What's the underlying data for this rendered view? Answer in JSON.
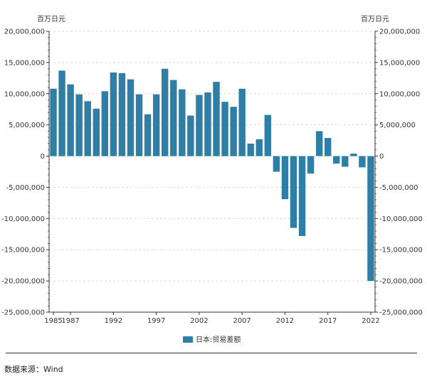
{
  "chart_data": {
    "type": "bar",
    "left_unit": "百万日元",
    "right_unit": "百万日元",
    "x": [
      1985,
      1986,
      1987,
      1988,
      1989,
      1990,
      1991,
      1992,
      1993,
      1994,
      1995,
      1996,
      1997,
      1998,
      1999,
      2000,
      2001,
      2002,
      2003,
      2004,
      2005,
      2006,
      2007,
      2008,
      2009,
      2010,
      2011,
      2012,
      2013,
      2014,
      2015,
      2016,
      2017,
      2018,
      2019,
      2020,
      2021,
      2022
    ],
    "x_tick_labels": [
      "1985",
      "1987",
      "1992",
      "1997",
      "2002",
      "2007",
      "2012",
      "2017",
      "2022"
    ],
    "series": [
      {
        "name": "日本:贸易差额",
        "color": "#2e7ea5",
        "values": [
          10800000,
          13700000,
          11500000,
          9900000,
          8800000,
          7600000,
          10400000,
          13400000,
          13300000,
          12300000,
          9900000,
          6700000,
          9900000,
          14000000,
          12200000,
          10700000,
          6500000,
          9800000,
          10200000,
          11900000,
          8700000,
          7900000,
          10800000,
          2000000,
          2700000,
          6600000,
          -2500000,
          -6900000,
          -11500000,
          -12800000,
          -2800000,
          4000000,
          2900000,
          -1200000,
          -1700000,
          400000,
          -1800000,
          -20000000
        ]
      }
    ],
    "ylim": [
      -25000000,
      20000000
    ],
    "y_ticks": [
      20000000,
      15000000,
      10000000,
      5000000,
      0,
      -5000000,
      -10000000,
      -15000000,
      -20000000,
      -25000000
    ],
    "y_tick_labels": [
      "20,000,000",
      "15,000,000",
      "10,000,000",
      "5,000,000",
      "0",
      "-5,000,000",
      "-10,000,000",
      "-15,000,000",
      "-20,000,000",
      "-25,000,000"
    ],
    "grid": true,
    "legend_position": "bottom"
  },
  "source_text": "数据来源：Wind"
}
